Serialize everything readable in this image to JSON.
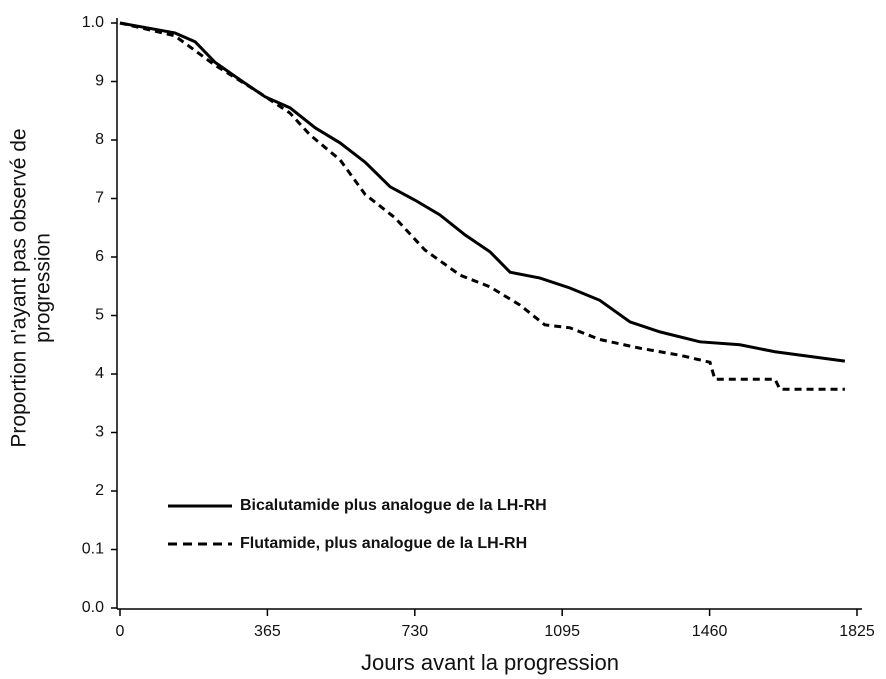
{
  "chart_data": {
    "type": "line",
    "xlabel": "Jours avant la progression",
    "ylabel": [
      "Proportion n'ayant pas observé de",
      "progression"
    ],
    "xlim": [
      0,
      1825
    ],
    "xticks": [
      0,
      365,
      730,
      1095,
      1460,
      1825
    ],
    "ylim": [
      0,
      1
    ],
    "yticks": [
      {
        "value": 0,
        "label": "0.0"
      },
      0.1,
      {
        "value": 0.2,
        "label": "2"
      },
      {
        "value": 0.3,
        "label": "3"
      },
      {
        "value": 0.4,
        "label": "4"
      },
      {
        "value": 0.5,
        "label": "5"
      },
      {
        "value": 0.6,
        "label": "6"
      },
      {
        "value": 0.7,
        "label": "7"
      },
      {
        "value": 0.8,
        "label": "8"
      },
      {
        "value": 0.9,
        "label": "9"
      },
      {
        "value": 1,
        "label": "1.0"
      }
    ],
    "legend": "lower left",
    "series": [
      {
        "name": "Bicalutamide plus analogue de la LH-RH",
        "color": "#000000",
        "dash": "solid",
        "x": [
          0,
          136,
          186,
          235,
          297,
          359,
          421,
          483,
          545,
          607,
          669,
          731,
          792,
          854,
          916,
          966,
          1040,
          1114,
          1188,
          1263,
          1337,
          1436,
          1535,
          1622,
          1795
        ],
        "values": [
          1.0,
          0.983,
          0.968,
          0.933,
          0.903,
          0.874,
          0.855,
          0.821,
          0.795,
          0.762,
          0.72,
          0.697,
          0.672,
          0.638,
          0.609,
          0.574,
          0.564,
          0.547,
          0.526,
          0.489,
          0.472,
          0.455,
          0.45,
          0.438,
          0.422
        ]
      },
      {
        "name": "Flutamide, plus analogue de la LH-RH",
        "color": "#000000",
        "dash": "dashed",
        "x": [
          0,
          136,
          235,
          347,
          421,
          470,
          545,
          607,
          681,
          755,
          842,
          916,
          990,
          1052,
          1114,
          1188,
          1288,
          1387,
          1461,
          1473,
          1622,
          1634,
          1795
        ],
        "values": [
          1.0,
          0.978,
          0.928,
          0.88,
          0.846,
          0.809,
          0.766,
          0.707,
          0.667,
          0.612,
          0.569,
          0.549,
          0.518,
          0.484,
          0.479,
          0.459,
          0.444,
          0.432,
          0.42,
          0.391,
          0.391,
          0.374,
          0.374
        ]
      }
    ]
  }
}
